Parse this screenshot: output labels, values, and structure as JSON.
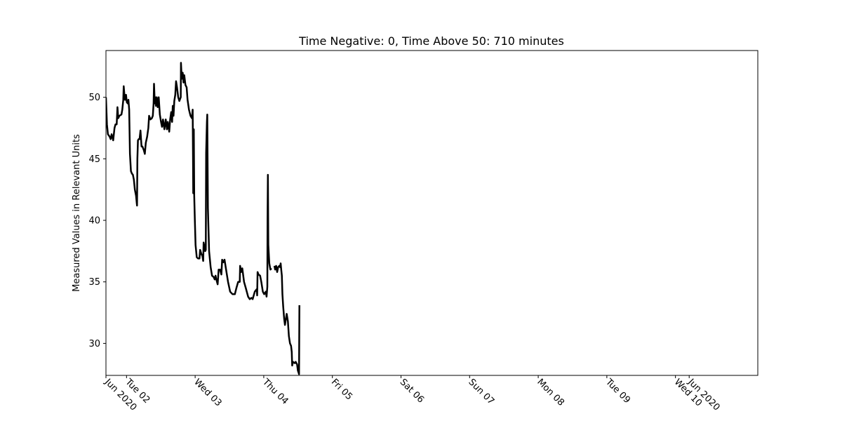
{
  "chart_data": {
    "type": "line",
    "title": "Time Negative: 0, Time Above 50: 710 minutes",
    "xlabel": "",
    "ylabel": "Measured Values in Relevant Units",
    "xlim": [
      "2020-06-01 00:00",
      "2020-06-10 12:00"
    ],
    "ylim": [
      27.4,
      53.8
    ],
    "grid": false,
    "legend": "none",
    "color": "#000000",
    "x_ticks": [
      {
        "at": "2020-06-01 00:00",
        "label": "Jun 2020"
      },
      {
        "at": "2020-06-01 07:12",
        "label": "Tue 02"
      },
      {
        "at": "2020-06-02 07:12",
        "label": "Wed 03"
      },
      {
        "at": "2020-06-03 07:12",
        "label": "Thu 04"
      },
      {
        "at": "2020-06-04 07:12",
        "label": "Fri 05"
      },
      {
        "at": "2020-06-05 07:12",
        "label": "Sat 06"
      },
      {
        "at": "2020-06-06 07:12",
        "label": "Sun 07"
      },
      {
        "at": "2020-06-07 07:12",
        "label": "Mon 08"
      },
      {
        "at": "2020-06-08 07:12",
        "label": "Tue 09"
      },
      {
        "at": "2020-06-09 07:12",
        "label": "Wed 10"
      },
      {
        "at": "2020-06-09 12:00",
        "label": "Jun 2020"
      }
    ],
    "y_ticks": [
      30,
      35,
      40,
      45,
      50
    ],
    "series": [
      {
        "segments": [
          [
            [
              "2020-06-01 00:00",
              50.0
            ],
            [
              "2020-06-01 00:21",
              47.8
            ],
            [
              "2020-06-01 00:41",
              47.0
            ],
            [
              "2020-06-01 01:18",
              46.8
            ],
            [
              "2020-06-01 01:38",
              46.6
            ],
            [
              "2020-06-01 01:59",
              47.0
            ],
            [
              "2020-06-01 02:32",
              46.5
            ],
            [
              "2020-06-01 03:00",
              47.5
            ],
            [
              "2020-06-01 03:20",
              47.8
            ],
            [
              "2020-06-01 03:45",
              47.8
            ],
            [
              "2020-06-01 04:01",
              49.2
            ],
            [
              "2020-06-01 04:17",
              48.3
            ],
            [
              "2020-06-01 04:42",
              48.5
            ],
            [
              "2020-06-01 05:26",
              48.6
            ],
            [
              "2020-06-01 05:43",
              49.0
            ],
            [
              "2020-06-01 06:04",
              49.8
            ],
            [
              "2020-06-01 06:12",
              50.9
            ],
            [
              "2020-06-01 06:28",
              50.2
            ],
            [
              "2020-06-01 06:40",
              49.8
            ],
            [
              "2020-06-01 07:01",
              50.2
            ],
            [
              "2020-06-01 07:17",
              49.6
            ],
            [
              "2020-06-01 07:38",
              49.5
            ],
            [
              "2020-06-01 07:51",
              49.8
            ],
            [
              "2020-06-01 08:07",
              49.0
            ],
            [
              "2020-06-01 08:23",
              45.4
            ],
            [
              "2020-06-01 08:44",
              44.0
            ],
            [
              "2020-06-01 09:05",
              43.8
            ],
            [
              "2020-06-01 09:25",
              43.7
            ],
            [
              "2020-06-01 09:46",
              43.3
            ],
            [
              "2020-06-01 10:06",
              42.5
            ],
            [
              "2020-06-01 10:31",
              42.0
            ],
            [
              "2020-06-01 10:47",
              41.4
            ],
            [
              "2020-06-01 10:52",
              41.2
            ],
            [
              "2020-06-01 11:00",
              45.0
            ],
            [
              "2020-06-01 11:12",
              46.5
            ],
            [
              "2020-06-01 11:28",
              46.6
            ],
            [
              "2020-06-01 11:45",
              46.6
            ],
            [
              "2020-06-01 12:05",
              47.3
            ],
            [
              "2020-06-01 12:26",
              46.0
            ],
            [
              "2020-06-01 12:46",
              46.0
            ],
            [
              "2020-06-01 13:15",
              45.7
            ],
            [
              "2020-06-01 13:36",
              45.4
            ],
            [
              "2020-06-01 13:56",
              46.3
            ],
            [
              "2020-06-01 14:25",
              46.8
            ],
            [
              "2020-06-01 14:49",
              47.5
            ],
            [
              "2020-06-01 15:06",
              48.5
            ],
            [
              "2020-06-01 15:34",
              48.2
            ],
            [
              "2020-06-01 16:03",
              48.3
            ],
            [
              "2020-06-01 16:24",
              48.5
            ],
            [
              "2020-06-01 16:40",
              49.5
            ],
            [
              "2020-06-01 16:48",
              51.1
            ],
            [
              "2020-06-01 17:05",
              49.5
            ],
            [
              "2020-06-01 17:17",
              50.0
            ],
            [
              "2020-06-01 17:29",
              49.3
            ],
            [
              "2020-06-01 17:46",
              50.0
            ],
            [
              "2020-06-01 18:06",
              49.2
            ],
            [
              "2020-06-01 18:27",
              50.0
            ],
            [
              "2020-06-01 18:51",
              48.6
            ],
            [
              "2020-06-01 19:16",
              48.0
            ],
            [
              "2020-06-01 19:36",
              47.6
            ],
            [
              "2020-06-01 19:57",
              48.2
            ],
            [
              "2020-06-01 20:26",
              47.4
            ],
            [
              "2020-06-01 20:54",
              48.2
            ],
            [
              "2020-06-01 21:19",
              47.4
            ],
            [
              "2020-06-01 21:39",
              48.0
            ],
            [
              "2020-06-01 22:08",
              47.2
            ],
            [
              "2020-06-01 22:28",
              48.2
            ],
            [
              "2020-06-01 22:49",
              48.8
            ],
            [
              "2020-06-01 23:09",
              48.0
            ],
            [
              "2020-06-01 23:22",
              49.3
            ],
            [
              "2020-06-01 23:38",
              48.5
            ],
            [
              "2020-06-01 23:54",
              49.7
            ],
            [
              "2020-06-02 00:15",
              50.2
            ],
            [
              "2020-06-02 00:31",
              51.3
            ],
            [
              "2020-06-02 00:52",
              50.8
            ],
            [
              "2020-06-02 01:17",
              50.0
            ],
            [
              "2020-06-02 01:41",
              49.7
            ],
            [
              "2020-06-02 02:10",
              50.0
            ],
            [
              "2020-06-02 02:14",
              52.8
            ],
            [
              "2020-06-02 02:31",
              51.5
            ],
            [
              "2020-06-02 02:51",
              52.0
            ],
            [
              "2020-06-02 03:07",
              51.2
            ],
            [
              "2020-06-02 03:24",
              51.8
            ],
            [
              "2020-06-02 03:48",
              51.0
            ],
            [
              "2020-06-02 04:13",
              50.8
            ],
            [
              "2020-06-02 04:33",
              49.8
            ],
            [
              "2020-06-02 05:02",
              49.0
            ],
            [
              "2020-06-02 05:35",
              48.5
            ],
            [
              "2020-06-02 06:04",
              48.3
            ],
            [
              "2020-06-02 06:20",
              49.0
            ],
            [
              "2020-06-02 06:28",
              45.0
            ],
            [
              "2020-06-02 06:32",
              42.2
            ],
            [
              "2020-06-02 06:44",
              47.4
            ],
            [
              "2020-06-02 06:53",
              42.0
            ],
            [
              "2020-06-02 07:05",
              40.0
            ],
            [
              "2020-06-02 07:21",
              38.0
            ],
            [
              "2020-06-02 07:46",
              37.0
            ],
            [
              "2020-06-02 08:14",
              36.9
            ],
            [
              "2020-06-02 08:43",
              36.9
            ],
            [
              "2020-06-02 08:56",
              37.6
            ],
            [
              "2020-06-02 09:20",
              37.3
            ],
            [
              "2020-06-02 09:45",
              37.1
            ],
            [
              "2020-06-02 10:01",
              36.7
            ],
            [
              "2020-06-02 10:10",
              38.2
            ],
            [
              "2020-06-02 10:30",
              37.8
            ],
            [
              "2020-06-02 10:42",
              37.5
            ],
            [
              "2020-06-02 10:55",
              37.6
            ],
            [
              "2020-06-02 11:03",
              45.5
            ],
            [
              "2020-06-02 11:19",
              48.0
            ],
            [
              "2020-06-02 11:27",
              48.6
            ],
            [
              "2020-06-02 11:40",
              41.0
            ],
            [
              "2020-06-02 12:04",
              37.5
            ],
            [
              "2020-06-02 12:37",
              36.2
            ],
            [
              "2020-06-02 13:06",
              35.5
            ],
            [
              "2020-06-02 13:39",
              35.4
            ],
            [
              "2020-06-02 14:03",
              35.2
            ],
            [
              "2020-06-02 14:20",
              35.5
            ],
            [
              "2020-06-02 14:36",
              35.2
            ],
            [
              "2020-06-02 15:05",
              34.8
            ],
            [
              "2020-06-02 15:25",
              36.0
            ],
            [
              "2020-06-02 15:54",
              36.0
            ],
            [
              "2020-06-02 16:22",
              35.6
            ],
            [
              "2020-06-02 16:39",
              36.8
            ],
            [
              "2020-06-02 17:03",
              36.6
            ],
            [
              "2020-06-02 17:28",
              36.8
            ],
            [
              "2020-06-02 18:01",
              36.0
            ],
            [
              "2020-06-02 18:42",
              35.0
            ],
            [
              "2020-06-02 19:27",
              34.2
            ],
            [
              "2020-06-02 20:16",
              34.0
            ],
            [
              "2020-06-02 21:05",
              34.0
            ],
            [
              "2020-06-02 21:38",
              34.5
            ],
            [
              "2020-06-02 22:15",
              35.0
            ],
            [
              "2020-06-02 22:48",
              35.0
            ],
            [
              "2020-06-02 22:56",
              36.3
            ],
            [
              "2020-06-02 23:16",
              35.8
            ],
            [
              "2020-06-02 23:41",
              36.1
            ],
            [
              "2020-06-03 00:18",
              35.0
            ],
            [
              "2020-06-03 00:55",
              34.5
            ],
            [
              "2020-06-03 01:44",
              33.8
            ],
            [
              "2020-06-03 02:17",
              33.6
            ],
            [
              "2020-06-03 02:54",
              33.7
            ],
            [
              "2020-06-03 03:19",
              33.6
            ],
            [
              "2020-06-03 04:04",
              34.2
            ],
            [
              "2020-06-03 04:45",
              34.4
            ],
            [
              "2020-06-03 04:53",
              33.9
            ],
            [
              "2020-06-03 05:02",
              35.8
            ],
            [
              "2020-06-03 05:22",
              35.6
            ],
            [
              "2020-06-03 05:55",
              35.5
            ],
            [
              "2020-06-03 06:20",
              35.0
            ],
            [
              "2020-06-03 06:52",
              34.2
            ],
            [
              "2020-06-03 07:21",
              34.0
            ],
            [
              "2020-06-03 07:54",
              34.2
            ],
            [
              "2020-06-03 08:10",
              33.8
            ],
            [
              "2020-06-03 08:27",
              34.6
            ],
            [
              "2020-06-03 08:31",
              40.0
            ],
            [
              "2020-06-03 08:39",
              43.7
            ],
            [
              "2020-06-03 08:47",
              38.0
            ],
            [
              "2020-06-03 09:08",
              36.5
            ],
            [
              "2020-06-03 09:32",
              36.0
            ],
            [
              "2020-06-03 09:53",
              36.1
            ]
          ],
          [
            [
              "2020-06-03 10:55",
              36.3
            ],
            [
              "2020-06-03 11:11",
              36.0
            ],
            [
              "2020-06-03 11:32",
              36.3
            ],
            [
              "2020-06-03 11:53",
              35.8
            ],
            [
              "2020-06-03 12:13",
              36.2
            ],
            [
              "2020-06-03 12:38",
              36.3
            ],
            [
              "2020-06-03 12:54",
              36.2
            ],
            [
              "2020-06-03 13:06",
              36.5
            ],
            [
              "2020-06-03 13:19",
              36.0
            ],
            [
              "2020-06-03 13:31",
              35.5
            ],
            [
              "2020-06-03 13:43",
              34.0
            ],
            [
              "2020-06-03 14:00",
              33.0
            ],
            [
              "2020-06-03 14:20",
              32.0
            ],
            [
              "2020-06-03 14:37",
              31.5
            ],
            [
              "2020-06-03 14:57",
              32.0
            ],
            [
              "2020-06-03 15:14",
              32.4
            ],
            [
              "2020-06-03 15:38",
              31.8
            ],
            [
              "2020-06-03 15:59",
              30.6
            ],
            [
              "2020-06-03 16:23",
              30.0
            ],
            [
              "2020-06-03 16:44",
              29.8
            ],
            [
              "2020-06-03 17:00",
              29.3
            ],
            [
              "2020-06-03 17:08",
              28.2
            ],
            [
              "2020-06-03 17:25",
              28.5
            ],
            [
              "2020-06-03 18:02",
              28.4
            ],
            [
              "2020-06-03 18:22",
              28.5
            ],
            [
              "2020-06-03 18:51",
              28.3
            ],
            [
              "2020-06-03 19:08",
              27.8
            ],
            [
              "2020-06-03 19:32",
              27.5
            ],
            [
              "2020-06-03 19:40",
              33.1
            ]
          ]
        ]
      }
    ]
  }
}
